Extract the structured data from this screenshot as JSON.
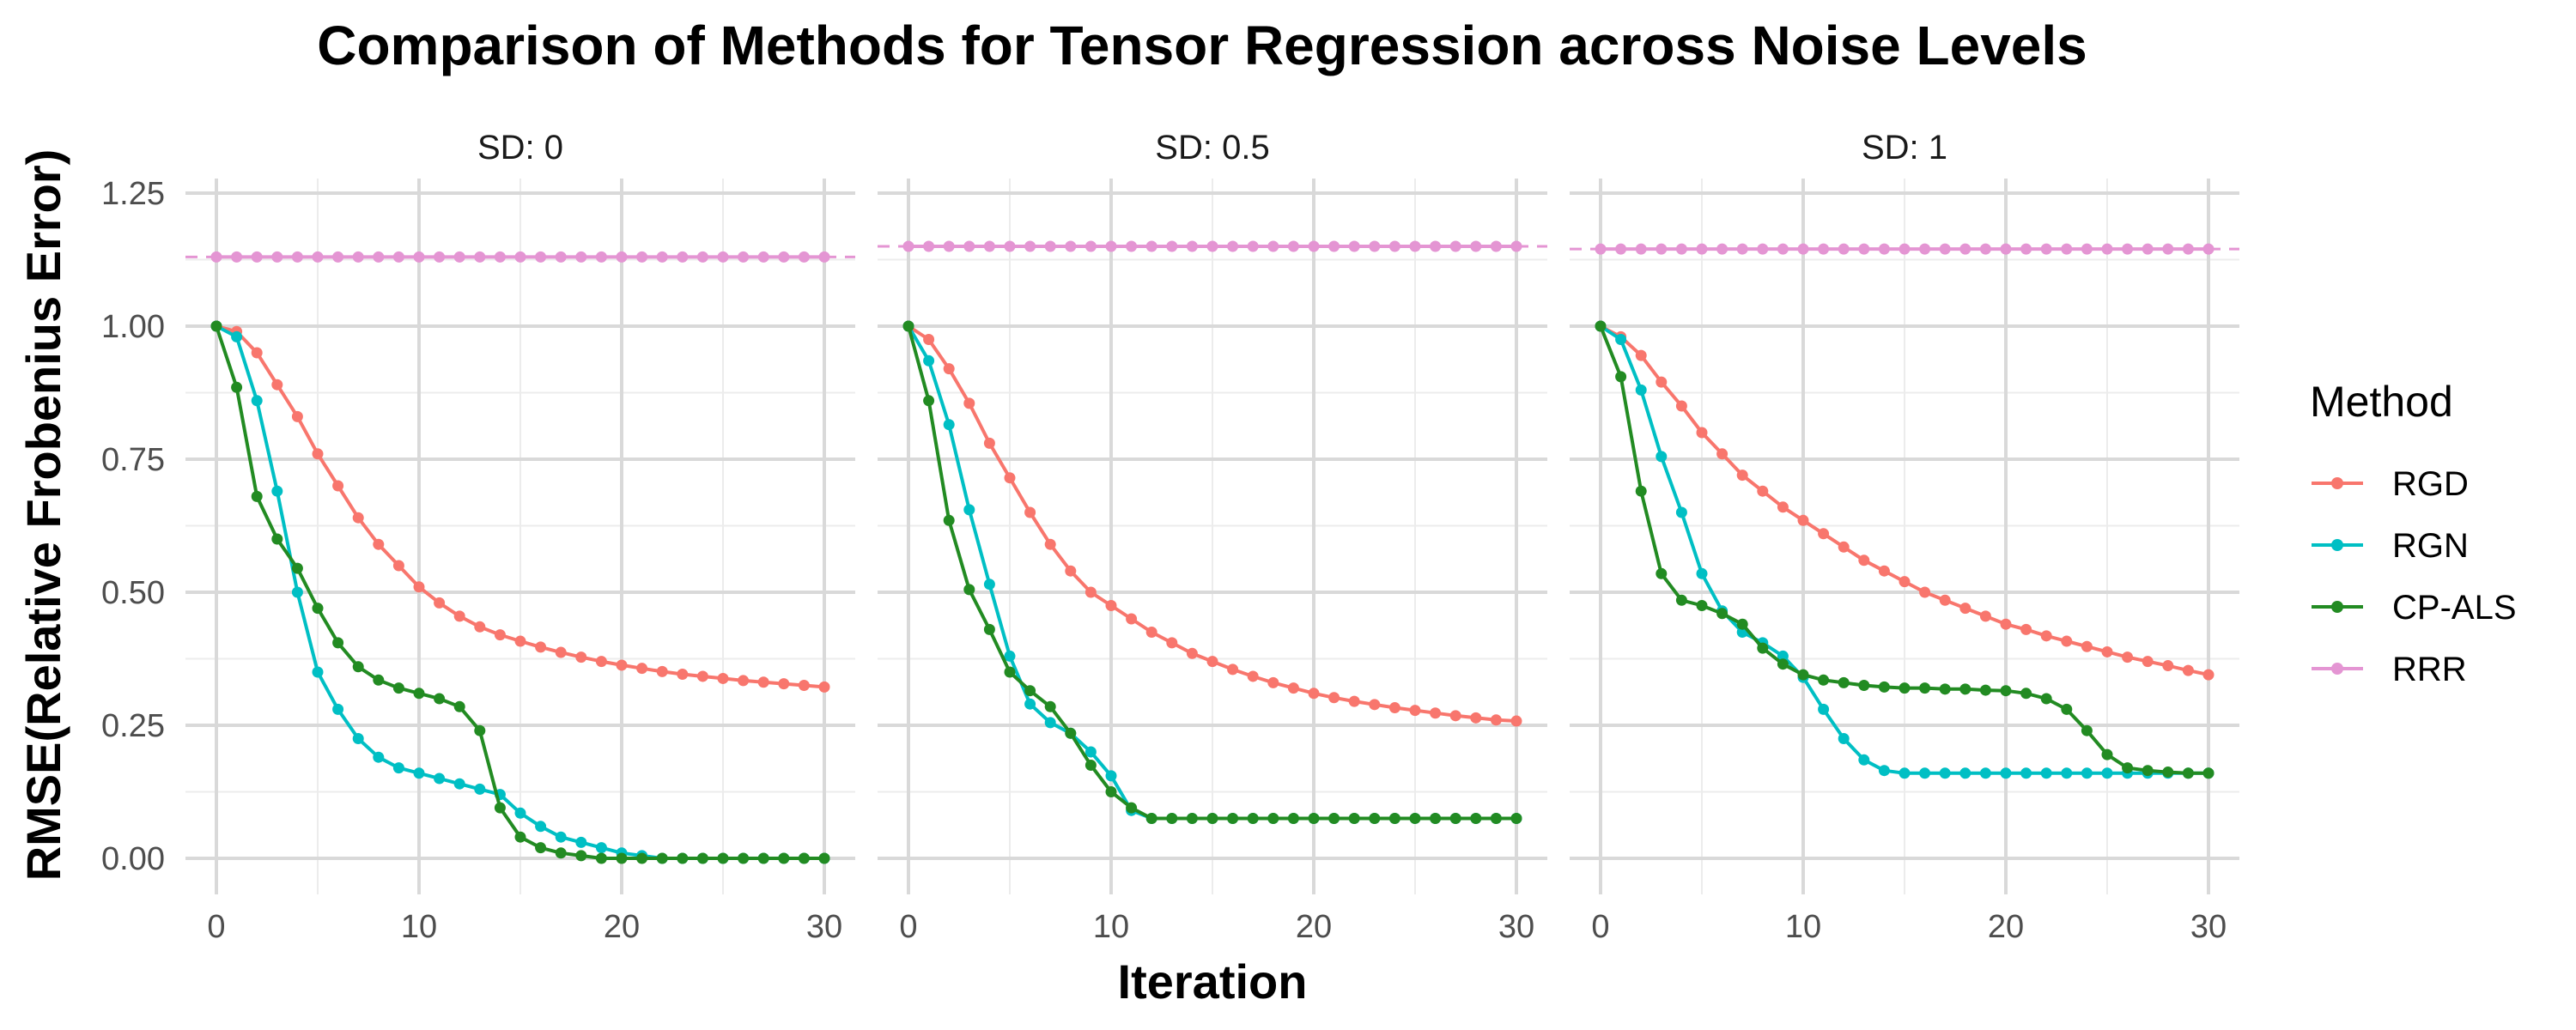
{
  "chart_data": {
    "type": "line",
    "title": "Comparison of Methods for Tensor Regression across Noise Levels",
    "xlabel": "Iteration",
    "ylabel": "RMSE(Relative Frobenius Error)",
    "xlim": [
      0,
      30
    ],
    "ylim": [
      0,
      1.25
    ],
    "x_ticks": [
      0,
      10,
      20,
      30
    ],
    "y_ticks": [
      0.0,
      0.25,
      0.5,
      0.75,
      1.0,
      1.25
    ],
    "x_tick_labels": [
      "0",
      "10",
      "20",
      "30"
    ],
    "y_tick_labels": [
      "0.00",
      "0.25",
      "0.50",
      "0.75",
      "1.00",
      "1.25"
    ],
    "grid": true,
    "legend": {
      "title": "Method",
      "position": "right",
      "entries": [
        {
          "name": "RGD",
          "color": "#F8766D"
        },
        {
          "name": "RGN",
          "color": "#00BFC4"
        },
        {
          "name": "CP-ALS",
          "color": "#228B22"
        },
        {
          "name": "RRR",
          "color": "#E495D3"
        }
      ]
    },
    "x": [
      0,
      1,
      2,
      3,
      4,
      5,
      6,
      7,
      8,
      9,
      10,
      11,
      12,
      13,
      14,
      15,
      16,
      17,
      18,
      19,
      20,
      21,
      22,
      23,
      24,
      25,
      26,
      27,
      28,
      29,
      30
    ],
    "facets": [
      {
        "label": "SD: 0",
        "rrr_hline": 1.13,
        "series": [
          {
            "name": "RGD",
            "values": [
              1.0,
              0.99,
              0.95,
              0.89,
              0.83,
              0.76,
              0.7,
              0.64,
              0.59,
              0.55,
              0.51,
              0.48,
              0.455,
              0.435,
              0.42,
              0.408,
              0.397,
              0.387,
              0.378,
              0.37,
              0.363,
              0.357,
              0.351,
              0.346,
              0.342,
              0.338,
              0.334,
              0.331,
              0.328,
              0.325,
              0.322
            ]
          },
          {
            "name": "RGN",
            "values": [
              1.0,
              0.98,
              0.86,
              0.69,
              0.5,
              0.35,
              0.28,
              0.225,
              0.19,
              0.17,
              0.16,
              0.15,
              0.14,
              0.13,
              0.12,
              0.085,
              0.06,
              0.04,
              0.03,
              0.02,
              0.01,
              0.005,
              0.0,
              0.0,
              0.0,
              0.0,
              0.0,
              0.0,
              0.0,
              0.0,
              0.0
            ]
          },
          {
            "name": "CP-ALS",
            "values": [
              1.0,
              0.885,
              0.68,
              0.6,
              0.545,
              0.47,
              0.405,
              0.36,
              0.335,
              0.32,
              0.31,
              0.3,
              0.285,
              0.24,
              0.095,
              0.04,
              0.02,
              0.01,
              0.005,
              0.0,
              0.0,
              0.0,
              0.0,
              0.0,
              0.0,
              0.0,
              0.0,
              0.0,
              0.0,
              0.0,
              0.0
            ]
          },
          {
            "name": "RRR",
            "values": [
              1.13,
              1.13,
              1.13,
              1.13,
              1.13,
              1.13,
              1.13,
              1.13,
              1.13,
              1.13,
              1.13,
              1.13,
              1.13,
              1.13,
              1.13,
              1.13,
              1.13,
              1.13,
              1.13,
              1.13,
              1.13,
              1.13,
              1.13,
              1.13,
              1.13,
              1.13,
              1.13,
              1.13,
              1.13,
              1.13,
              1.13
            ]
          }
        ]
      },
      {
        "label": "SD: 0.5",
        "rrr_hline": 1.15,
        "series": [
          {
            "name": "RGD",
            "values": [
              1.0,
              0.975,
              0.92,
              0.855,
              0.78,
              0.715,
              0.65,
              0.59,
              0.54,
              0.5,
              0.475,
              0.45,
              0.425,
              0.405,
              0.385,
              0.37,
              0.355,
              0.342,
              0.33,
              0.32,
              0.31,
              0.302,
              0.295,
              0.289,
              0.283,
              0.278,
              0.273,
              0.268,
              0.264,
              0.26,
              0.258
            ]
          },
          {
            "name": "RGN",
            "values": [
              1.0,
              0.935,
              0.815,
              0.655,
              0.515,
              0.38,
              0.29,
              0.255,
              0.235,
              0.2,
              0.155,
              0.09,
              0.075,
              0.075,
              0.075,
              0.075,
              0.075,
              0.075,
              0.075,
              0.075,
              0.075,
              0.075,
              0.075,
              0.075,
              0.075,
              0.075,
              0.075,
              0.075,
              0.075,
              0.075,
              0.075
            ]
          },
          {
            "name": "CP-ALS",
            "values": [
              1.0,
              0.86,
              0.635,
              0.505,
              0.43,
              0.35,
              0.315,
              0.285,
              0.235,
              0.175,
              0.125,
              0.095,
              0.075,
              0.075,
              0.075,
              0.075,
              0.075,
              0.075,
              0.075,
              0.075,
              0.075,
              0.075,
              0.075,
              0.075,
              0.075,
              0.075,
              0.075,
              0.075,
              0.075,
              0.075,
              0.075
            ]
          },
          {
            "name": "RRR",
            "values": [
              1.15,
              1.15,
              1.15,
              1.15,
              1.15,
              1.15,
              1.15,
              1.15,
              1.15,
              1.15,
              1.15,
              1.15,
              1.15,
              1.15,
              1.15,
              1.15,
              1.15,
              1.15,
              1.15,
              1.15,
              1.15,
              1.15,
              1.15,
              1.15,
              1.15,
              1.15,
              1.15,
              1.15,
              1.15,
              1.15,
              1.15
            ]
          }
        ]
      },
      {
        "label": "SD: 1",
        "rrr_hline": 1.145,
        "series": [
          {
            "name": "RGD",
            "values": [
              1.0,
              0.98,
              0.945,
              0.895,
              0.85,
              0.8,
              0.76,
              0.72,
              0.69,
              0.66,
              0.635,
              0.61,
              0.585,
              0.56,
              0.54,
              0.52,
              0.5,
              0.485,
              0.47,
              0.455,
              0.44,
              0.43,
              0.418,
              0.408,
              0.398,
              0.388,
              0.378,
              0.37,
              0.362,
              0.353,
              0.345
            ]
          },
          {
            "name": "RGN",
            "values": [
              1.0,
              0.975,
              0.88,
              0.755,
              0.65,
              0.535,
              0.465,
              0.425,
              0.405,
              0.38,
              0.34,
              0.28,
              0.225,
              0.185,
              0.165,
              0.16,
              0.16,
              0.16,
              0.16,
              0.16,
              0.16,
              0.16,
              0.16,
              0.16,
              0.16,
              0.16,
              0.16,
              0.16,
              0.16,
              0.16,
              0.16
            ]
          },
          {
            "name": "CP-ALS",
            "values": [
              1.0,
              0.905,
              0.69,
              0.535,
              0.485,
              0.475,
              0.46,
              0.44,
              0.395,
              0.365,
              0.345,
              0.335,
              0.33,
              0.325,
              0.322,
              0.32,
              0.32,
              0.318,
              0.318,
              0.316,
              0.315,
              0.31,
              0.3,
              0.28,
              0.24,
              0.195,
              0.17,
              0.165,
              0.162,
              0.16,
              0.16
            ]
          },
          {
            "name": "RRR",
            "values": [
              1.145,
              1.145,
              1.145,
              1.145,
              1.145,
              1.145,
              1.145,
              1.145,
              1.145,
              1.145,
              1.145,
              1.145,
              1.145,
              1.145,
              1.145,
              1.145,
              1.145,
              1.145,
              1.145,
              1.145,
              1.145,
              1.145,
              1.145,
              1.145,
              1.145,
              1.145,
              1.145,
              1.145,
              1.145,
              1.145,
              1.145
            ]
          }
        ]
      }
    ]
  }
}
